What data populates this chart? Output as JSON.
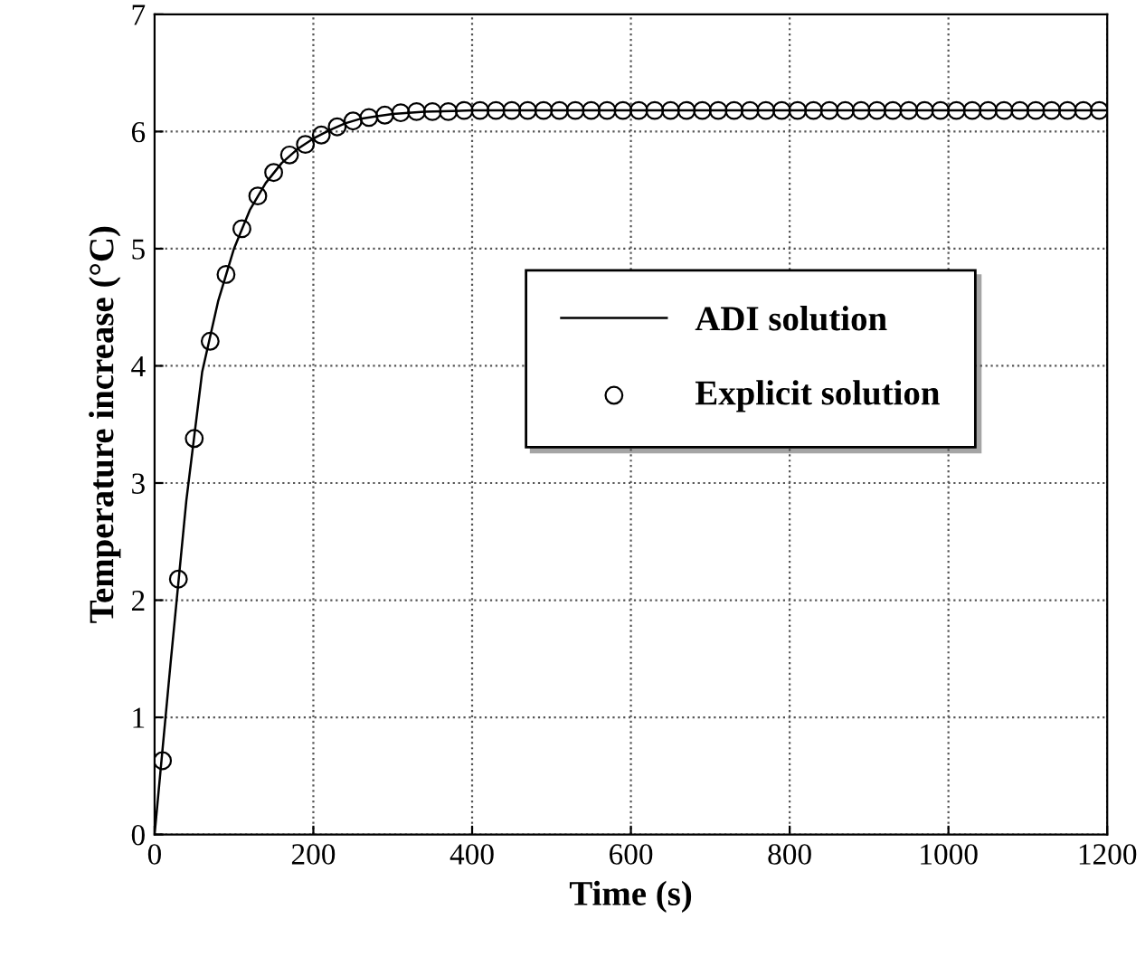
{
  "chart_data": {
    "type": "line",
    "xlabel": "Time (s)",
    "ylabel": "Temperature increase (°C)",
    "xlim": [
      0,
      1200
    ],
    "ylim": [
      0,
      7
    ],
    "xticks": [
      0,
      200,
      400,
      600,
      800,
      1000,
      1200
    ],
    "yticks": [
      0,
      1,
      2,
      3,
      4,
      5,
      6,
      7
    ],
    "grid": true,
    "legend": "right",
    "series": [
      {
        "name": "ADI solution",
        "color": "#000000",
        "marker": "none",
        "line_style": "solid",
        "x": [
          0,
          20,
          40,
          60,
          80,
          100,
          120,
          140,
          160,
          180,
          200,
          220,
          240,
          260,
          280,
          300,
          340,
          400,
          1200
        ],
        "values": [
          0,
          1.45,
          2.85,
          3.95,
          4.55,
          5.0,
          5.33,
          5.56,
          5.73,
          5.85,
          5.94,
          6.01,
          6.07,
          6.11,
          6.13,
          6.15,
          6.17,
          6.18,
          6.18
        ]
      },
      {
        "name": "Explicit solution",
        "type": "scatter",
        "color": "#000000",
        "marker": "circle",
        "x": [
          10,
          30,
          50,
          70,
          90,
          110,
          130,
          150,
          170,
          190,
          210,
          230,
          250,
          270,
          290,
          310,
          330,
          350,
          370,
          390,
          410,
          430,
          450,
          470,
          490,
          510,
          530,
          550,
          570,
          590,
          610,
          630,
          650,
          670,
          690,
          710,
          730,
          750,
          770,
          790,
          810,
          830,
          850,
          870,
          890,
          910,
          930,
          950,
          970,
          990,
          1010,
          1030,
          1050,
          1070,
          1090,
          1110,
          1130,
          1150,
          1170,
          1190
        ],
        "values": [
          0.63,
          2.18,
          3.38,
          4.21,
          4.78,
          5.17,
          5.45,
          5.65,
          5.8,
          5.89,
          5.97,
          6.04,
          6.09,
          6.12,
          6.14,
          6.16,
          6.17,
          6.17,
          6.17,
          6.18,
          6.18,
          6.18,
          6.18,
          6.18,
          6.18,
          6.18,
          6.18,
          6.18,
          6.18,
          6.18,
          6.18,
          6.18,
          6.18,
          6.18,
          6.18,
          6.18,
          6.18,
          6.18,
          6.18,
          6.18,
          6.18,
          6.18,
          6.18,
          6.18,
          6.18,
          6.18,
          6.18,
          6.18,
          6.18,
          6.18,
          6.18,
          6.18,
          6.18,
          6.18,
          6.18,
          6.18,
          6.18,
          6.18,
          6.18,
          6.18
        ]
      }
    ]
  }
}
